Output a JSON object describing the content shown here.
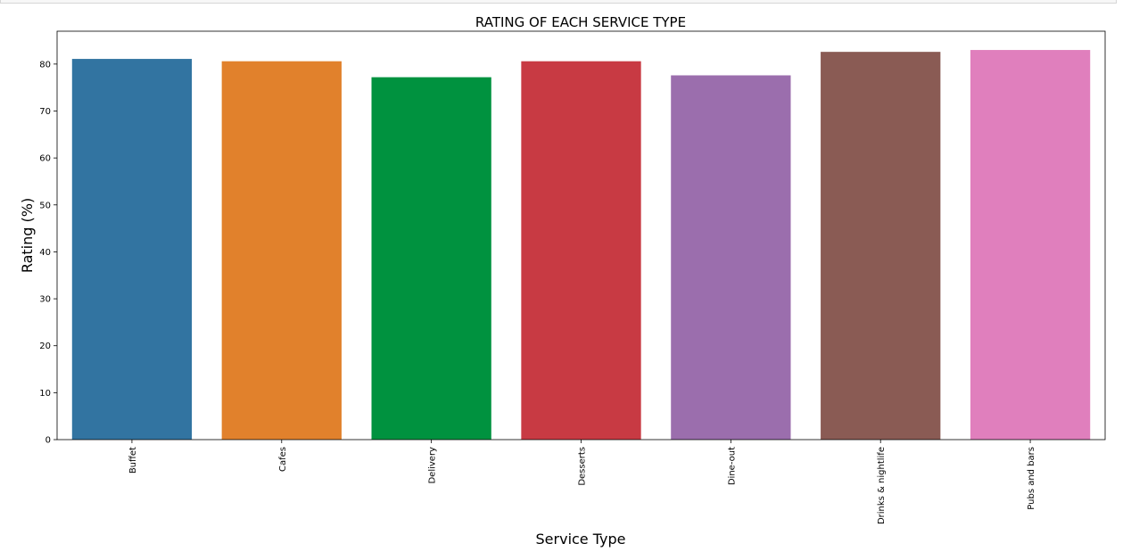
{
  "chart_data": {
    "type": "bar",
    "title": "RATING OF EACH SERVICE TYPE",
    "xlabel": "Service Type",
    "ylabel": "Rating (%)",
    "categories": [
      "Buffet",
      "Cafes",
      "Delivery",
      "Desserts",
      "Dine-out",
      "Drinks & nightlife",
      "Pubs and bars"
    ],
    "values": [
      81.1,
      80.6,
      77.2,
      80.6,
      77.6,
      82.6,
      83.0
    ],
    "colors": [
      "#3274a1",
      "#e1812c",
      "#00923f",
      "#c83a43",
      "#9b6ead",
      "#8a5b54",
      "#e07fbd"
    ],
    "ylim": [
      0,
      87
    ],
    "yticks": [
      0,
      10,
      20,
      30,
      40,
      50,
      60,
      70,
      80
    ],
    "grid": false,
    "legend": "none"
  }
}
